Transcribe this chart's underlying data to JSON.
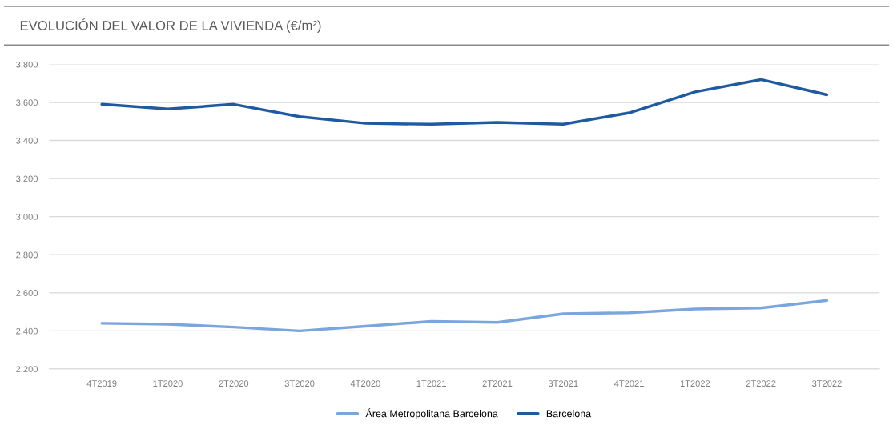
{
  "chart_data": {
    "type": "line",
    "title": "EVOLUCIÓN DEL VALOR DE LA VIVIENDA (€/m²)",
    "categories": [
      "4T2019",
      "1T2020",
      "2T2020",
      "3T2020",
      "4T2020",
      "1T2021",
      "2T2021",
      "3T2021",
      "4T2021",
      "1T2022",
      "2T2022",
      "3T2022"
    ],
    "series": [
      {
        "name": "Área Metropolitana Barcelona",
        "color": "#7aa6e0",
        "values": [
          2440,
          2435,
          2420,
          2400,
          2425,
          2450,
          2445,
          2490,
          2495,
          2515,
          2520,
          2560
        ]
      },
      {
        "name": "Barcelona",
        "color": "#1f5aa0",
        "values": [
          3590,
          3565,
          3590,
          3525,
          3490,
          3485,
          3495,
          3485,
          3545,
          3655,
          3720,
          3640
        ]
      }
    ],
    "ylim": [
      2200,
      3800
    ],
    "yticks": [
      {
        "value": 2200,
        "label": "2.200"
      },
      {
        "value": 2400,
        "label": "2.400"
      },
      {
        "value": 2600,
        "label": "2.600"
      },
      {
        "value": 2800,
        "label": "2.800"
      },
      {
        "value": 3000,
        "label": "3.000"
      },
      {
        "value": 3200,
        "label": "3.200"
      },
      {
        "value": 3400,
        "label": "3.400"
      },
      {
        "value": 3600,
        "label": "3.600"
      },
      {
        "value": 3800,
        "label": "3.800"
      }
    ],
    "grid": "y",
    "legend": "bottom",
    "marker": "none",
    "line_style": "solid"
  }
}
